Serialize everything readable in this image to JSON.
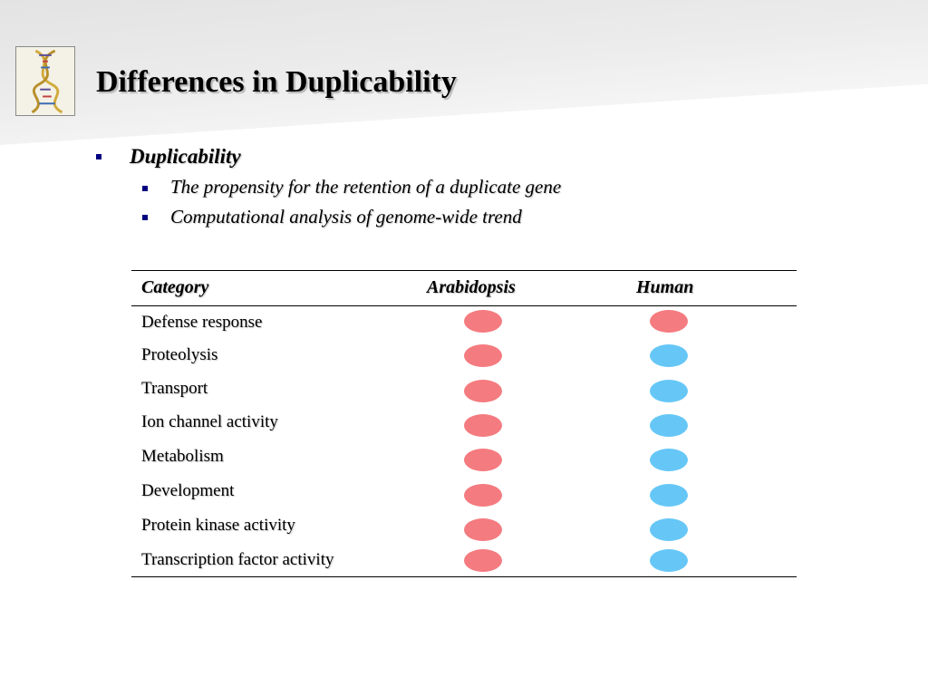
{
  "slide": {
    "title": "Differences in Duplicability",
    "logo_icon": "dna-helix-icon"
  },
  "bullets": {
    "level1": "Duplicability",
    "level2": [
      "The propensity for the retention of a duplicate gene",
      "Computational analysis of genome-wide trend"
    ]
  },
  "table": {
    "headers": {
      "category": "Category",
      "arabidopsis": "Arabidopsis",
      "human": "Human"
    },
    "colors": {
      "red": "#f47b7f",
      "blue": "#66c7f7"
    },
    "rows": [
      {
        "category": "Defense response",
        "arabidopsis": "red",
        "human": "red"
      },
      {
        "category": "Proteolysis",
        "arabidopsis": "red",
        "human": "blue"
      },
      {
        "category": "Transport",
        "arabidopsis": "red",
        "human": "blue"
      },
      {
        "category": "Ion channel activity",
        "arabidopsis": "red",
        "human": "blue"
      },
      {
        "category": "Metabolism",
        "arabidopsis": "red",
        "human": "blue"
      },
      {
        "category": "Development",
        "arabidopsis": "red",
        "human": "blue"
      },
      {
        "category": "Protein kinase activity",
        "arabidopsis": "red",
        "human": "blue"
      },
      {
        "category": "Transcription factor activity",
        "arabidopsis": "red",
        "human": "blue"
      }
    ]
  }
}
